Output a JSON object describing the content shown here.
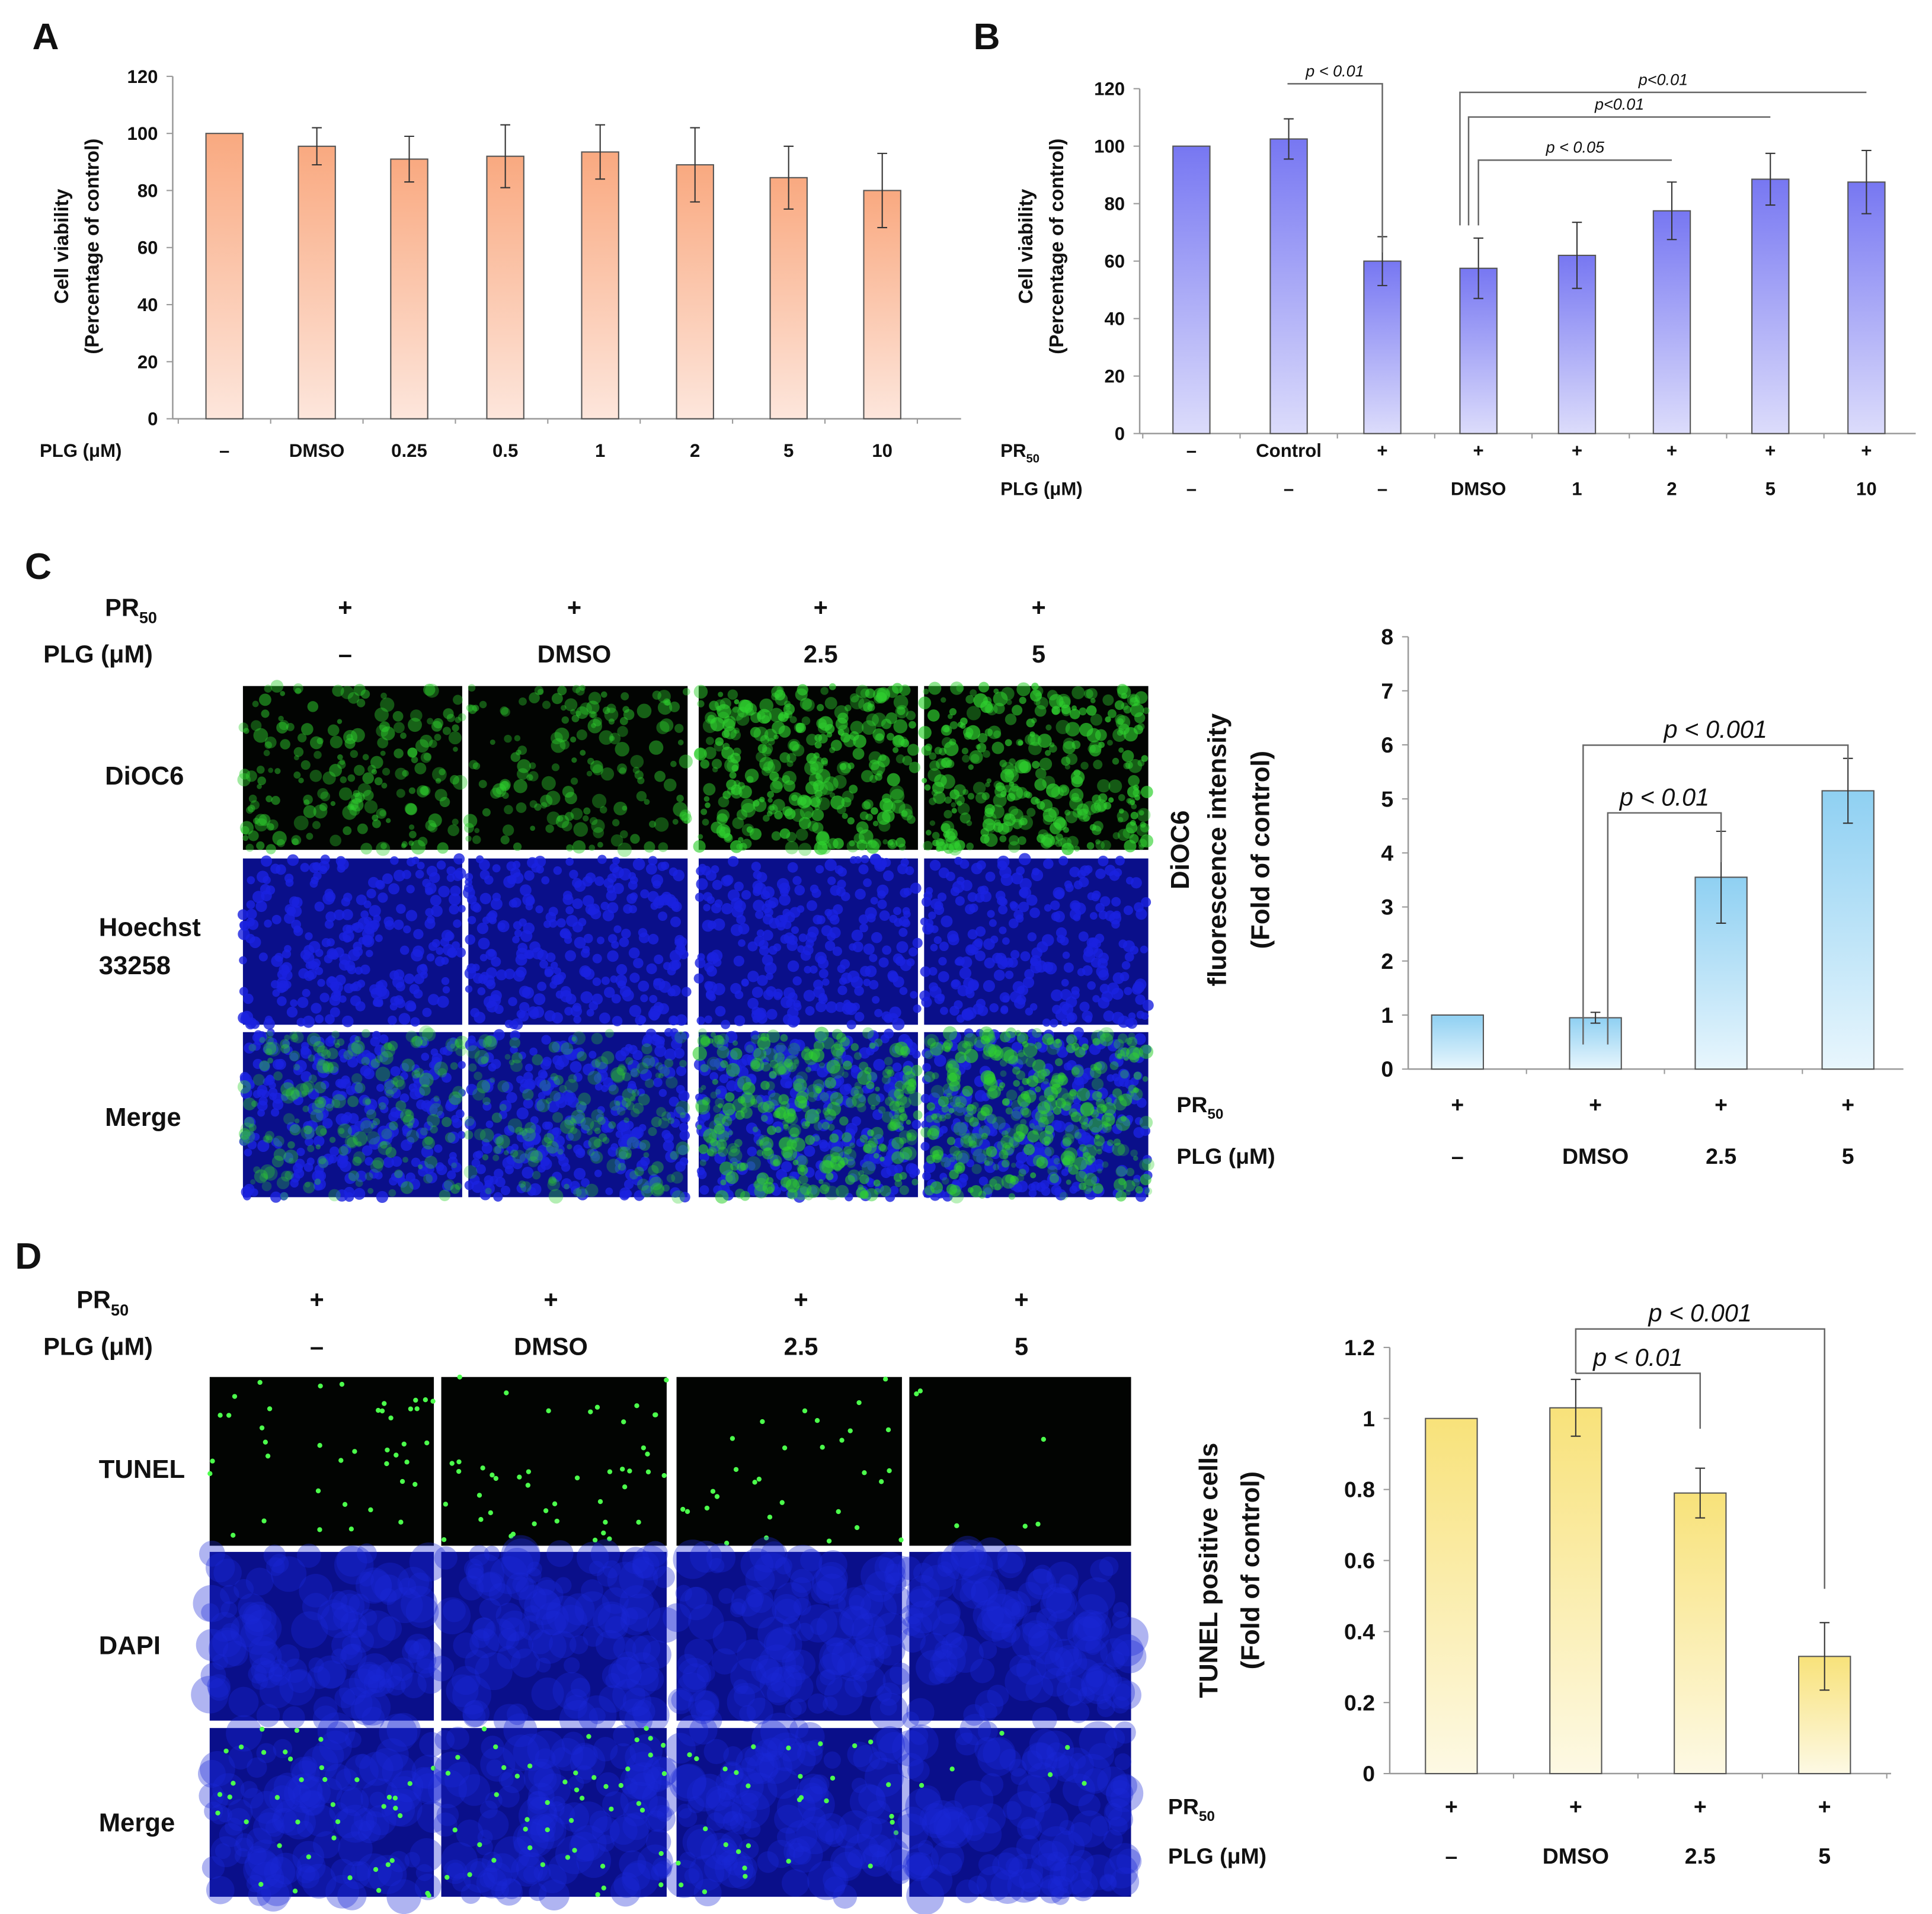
{
  "panels": {
    "A": {
      "letter": "A"
    },
    "B": {
      "letter": "B"
    },
    "C": {
      "letter": "C"
    },
    "D": {
      "letter": "D"
    }
  },
  "labels": {
    "pr": {
      "main": "PR",
      "sub": "50"
    },
    "plg": "PLG (μM)",
    "plus": "+",
    "minus": "–"
  },
  "chart_data": [
    {
      "id": "A",
      "type": "bar",
      "ylabel": [
        "Cell viability",
        "(Percentage of control)"
      ],
      "ylim": [
        0,
        120
      ],
      "yticks": [
        0,
        20,
        40,
        60,
        80,
        100,
        120
      ],
      "colors": [
        "#f9a980",
        "#fde6dc"
      ],
      "rows": [
        {
          "label": "PLG (μM)",
          "values": [
            "–",
            "DMSO",
            "0.25",
            "0.5",
            "1",
            "2",
            "5",
            "10"
          ]
        }
      ],
      "values": [
        100,
        95.5,
        91,
        92,
        93.5,
        89,
        84.5,
        80
      ],
      "errors": [
        0,
        6.5,
        8,
        11,
        9.5,
        13,
        11,
        13
      ],
      "significance": []
    },
    {
      "id": "B",
      "type": "bar",
      "ylabel": [
        "Cell viability",
        "(Percentage of control)"
      ],
      "ylim": [
        0,
        120
      ],
      "yticks": [
        0,
        20,
        40,
        60,
        80,
        100,
        120
      ],
      "colors": [
        "#7777f2",
        "#dcdcfb"
      ],
      "rows": [
        {
          "label": "PR50",
          "values": [
            "–",
            "Control",
            "+",
            "+",
            "+",
            "+",
            "+",
            "+"
          ]
        },
        {
          "label": "PLG (μM)",
          "values": [
            "–",
            "–",
            "–",
            "DMSO",
            "1",
            "2",
            "5",
            "10"
          ]
        }
      ],
      "values": [
        100,
        102.5,
        60,
        57.5,
        62,
        77.5,
        88.5,
        87.5
      ],
      "errors": [
        0,
        7,
        8.5,
        10.5,
        11.5,
        10,
        9,
        11
      ],
      "significance": [
        {
          "from": 1,
          "to": 2,
          "text": "p < 0.01"
        },
        {
          "from": 3,
          "to": 7,
          "text": "p<0.01"
        },
        {
          "from": 3,
          "to": 6,
          "text": "p<0.01"
        },
        {
          "from": 3,
          "to": 5,
          "text": "p < 0.05"
        }
      ]
    },
    {
      "id": "C",
      "type": "bar",
      "ylabel": [
        "DiOC6",
        "fluorescence intensity",
        "(Fold of control)"
      ],
      "ylim": [
        0,
        8
      ],
      "yticks": [
        0,
        1,
        2,
        3,
        4,
        5,
        6,
        7,
        8
      ],
      "colors": [
        "#8fd0f2",
        "#e8f6fd"
      ],
      "rows": [
        {
          "label": "PR50",
          "values": [
            "+",
            "+",
            "+",
            "+"
          ]
        },
        {
          "label": "PLG (μM)",
          "values": [
            "–",
            "DMSO",
            "2.5",
            "5"
          ]
        }
      ],
      "values": [
        1,
        0.95,
        3.55,
        5.15
      ],
      "errors": [
        0,
        0.1,
        0.85,
        0.6
      ],
      "significance": [
        {
          "from": 1,
          "to": 2,
          "text": "p < 0.01"
        },
        {
          "from": 1,
          "to": 3,
          "text": "p < 0.001"
        }
      ]
    },
    {
      "id": "D",
      "type": "bar",
      "ylabel": [
        "TUNEL positive cells",
        "(Fold of control)"
      ],
      "ylim": [
        0,
        1.2
      ],
      "yticks": [
        0,
        0.2,
        0.4,
        0.6,
        0.8,
        1,
        1.2
      ],
      "colors": [
        "#f8e27a",
        "#fdf9e4"
      ],
      "rows": [
        {
          "label": "PR50",
          "values": [
            "+",
            "+",
            "+",
            "+"
          ]
        },
        {
          "label": "PLG (μM)",
          "values": [
            "–",
            "DMSO",
            "2.5",
            "5"
          ]
        }
      ],
      "values": [
        1,
        1.03,
        0.79,
        0.33
      ],
      "errors": [
        0,
        0.08,
        0.07,
        0.095
      ],
      "significance": [
        {
          "from": 1,
          "to": 2,
          "text": "p < 0.01"
        },
        {
          "from": 1,
          "to": 3,
          "text": "p < 0.001"
        }
      ]
    }
  ],
  "micrographs": {
    "C": {
      "columns": [
        {
          "pr": "+",
          "plg": "–"
        },
        {
          "pr": "+",
          "plg": "DMSO"
        },
        {
          "pr": "+",
          "plg": "2.5"
        },
        {
          "pr": "+",
          "plg": "5"
        }
      ],
      "rows": [
        [
          "DiOC6"
        ],
        [
          "Hoechst",
          "33258"
        ],
        [
          "Merge"
        ]
      ],
      "green_intensity": [
        0.45,
        0.35,
        0.9,
        0.95
      ]
    },
    "D": {
      "columns": [
        {
          "pr": "+",
          "plg": "–"
        },
        {
          "pr": "+",
          "plg": "DMSO"
        },
        {
          "pr": "+",
          "plg": "2.5"
        },
        {
          "pr": "+",
          "plg": "5"
        }
      ],
      "rows": [
        [
          "TUNEL"
        ],
        [
          "DAPI"
        ],
        [
          "Merge"
        ]
      ],
      "tunel_counts": [
        40,
        45,
        30,
        6
      ]
    }
  }
}
